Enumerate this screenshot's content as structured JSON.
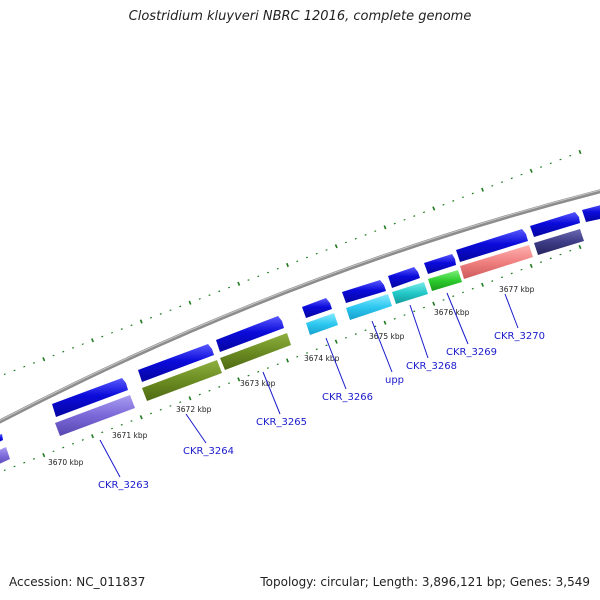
{
  "title": "Clostridium kluyveri NBRC 12016, complete genome",
  "accession": "Accession: NC_011837",
  "summary": "Topology: circular; Length: 3,896,121 bp; Genes: 3,549",
  "colors": {
    "backbone": "#8c8c8c",
    "ticks": "#1f7a1f",
    "gene_forward": "#0b0bdb",
    "label_link": "#1a1acc"
  },
  "kbp_labels": [
    "3670 kbp",
    "3671 kbp",
    "3672 kbp",
    "3673 kbp",
    "3674 kbp",
    "3675 kbp",
    "3676 kbp",
    "3677 kbp"
  ],
  "gene_labels": [
    "CKR_3263",
    "CKR_3264",
    "CKR_3265",
    "CKR_3266",
    "upp",
    "CKR_3268",
    "CKR_3269",
    "CKR_3270"
  ]
}
